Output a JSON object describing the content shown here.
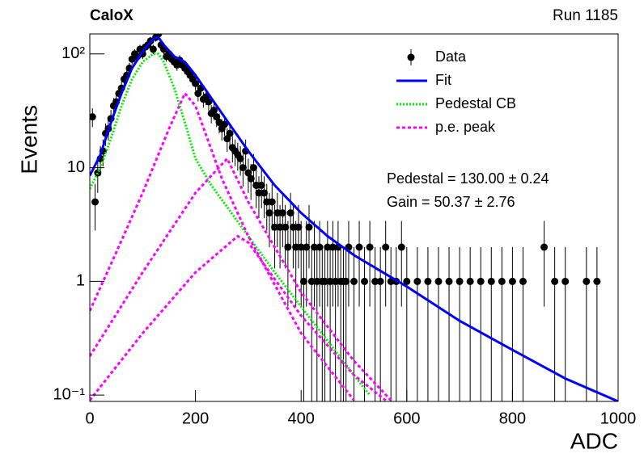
{
  "chart_data": {
    "type": "log-line",
    "title": "CaloX",
    "subtitle": "Run 1185",
    "x_label": "ADC",
    "y_label": "Events",
    "annotations": [
      "Pedestal = 130.00 ± 0.24",
      "Gain = 50.37 ± 2.76"
    ],
    "log_y": true,
    "legend": "upper-right",
    "xlim": [
      0,
      1000
    ],
    "ylim": [
      0.088,
      150
    ],
    "xticks": [
      0,
      200,
      400,
      600,
      800,
      1000
    ],
    "yticks": [
      {
        "value": 0.1,
        "label": "10⁻¹"
      },
      1,
      10,
      {
        "value": 100,
        "label": "10²"
      }
    ],
    "series": [
      {
        "name": "Data",
        "color": "#000000",
        "style": "points",
        "x": [
          5,
          10,
          15,
          20,
          25,
          30,
          35,
          40,
          45,
          50,
          55,
          60,
          65,
          70,
          75,
          80,
          85,
          90,
          95,
          100,
          105,
          110,
          115,
          120,
          125,
          130,
          135,
          140,
          145,
          150,
          155,
          160,
          165,
          170,
          175,
          180,
          185,
          190,
          195,
          200,
          205,
          210,
          215,
          220,
          225,
          230,
          235,
          240,
          245,
          250,
          255,
          260,
          265,
          270,
          275,
          280,
          285,
          290,
          295,
          300,
          305,
          310,
          315,
          320,
          325,
          330,
          335,
          340,
          345,
          350,
          355,
          360,
          365,
          370,
          375,
          380,
          385,
          390,
          395,
          400,
          405,
          410,
          415,
          420,
          425,
          430,
          435,
          440,
          445,
          450,
          455,
          460,
          465,
          470,
          475,
          480,
          485,
          490,
          500,
          510,
          520,
          530,
          540,
          550,
          560,
          570,
          580,
          590,
          600,
          620,
          640,
          660,
          680,
          700,
          720,
          740,
          760,
          780,
          800,
          820,
          860,
          880,
          900,
          940,
          960
        ],
        "values": [
          28,
          5,
          9,
          12,
          14,
          20,
          22,
          27,
          35,
          38,
          45,
          50,
          60,
          65,
          75,
          90,
          100,
          95,
          110,
          100,
          115,
          120,
          130,
          110,
          140,
          150,
          120,
          110,
          95,
          100,
          90,
          85,
          80,
          88,
          80,
          75,
          70,
          65,
          60,
          55,
          45,
          50,
          40,
          42,
          38,
          30,
          32,
          28,
          25,
          22,
          24,
          18,
          20,
          15,
          14,
          13,
          12,
          10,
          14,
          9,
          8,
          10,
          7,
          6,
          7,
          6,
          5,
          4,
          5,
          3,
          4,
          3,
          4,
          3,
          2,
          4,
          3,
          2,
          3,
          2,
          1,
          2,
          3,
          1,
          2,
          1,
          2,
          1,
          1,
          2,
          1,
          2,
          1,
          2,
          1,
          1,
          1,
          2,
          1,
          2,
          1,
          2,
          1,
          1,
          2,
          1,
          1,
          2,
          1,
          1,
          1,
          1,
          1,
          1,
          1,
          1,
          1,
          1,
          1,
          1,
          2,
          1,
          1,
          1,
          1
        ],
        "yerr": [
          5.3,
          2.2,
          3,
          3.5,
          3.7,
          4.5,
          4.7,
          5.2,
          5.9,
          6.2,
          6.7,
          7.1,
          7.7,
          8.1,
          8.7,
          9.5,
          10,
          9.7,
          10.5,
          10,
          10.7,
          11,
          11.4,
          10.5,
          11.8,
          12.2,
          11,
          10.5,
          9.7,
          10,
          9.5,
          9.2,
          8.9,
          9.4,
          8.9,
          8.7,
          8.4,
          8.1,
          7.7,
          7.4,
          6.7,
          7.1,
          6.3,
          6.5,
          6.2,
          5.5,
          5.7,
          5.3,
          5,
          4.7,
          4.9,
          4.2,
          4.5,
          3.9,
          3.7,
          3.6,
          3.5,
          3.2,
          3.7,
          3,
          2.8,
          3.2,
          2.6,
          2.4,
          2.6,
          2.4,
          2.2,
          2,
          2.2,
          1.7,
          2,
          1.7,
          2,
          1.7,
          1.4,
          2,
          1.7,
          1.4,
          1.7,
          1.4,
          1,
          1.4,
          1.7,
          1,
          1.4,
          1,
          1.4,
          1,
          1,
          1.4,
          1,
          1.4,
          1,
          1.4,
          1,
          1,
          1,
          1.4,
          1,
          1.4,
          1,
          1.4,
          1,
          1,
          1.4,
          1,
          1,
          1.4,
          1,
          1,
          1,
          1,
          1,
          1,
          1,
          1,
          1,
          1,
          1,
          1,
          1.4,
          1,
          1,
          1,
          1
        ]
      },
      {
        "name": "Fit",
        "color": "#0000ff",
        "style": "solid",
        "x": [
          0,
          20,
          40,
          60,
          80,
          100,
          120,
          130,
          140,
          160,
          180,
          200,
          250,
          300,
          350,
          400,
          450,
          500,
          600,
          700,
          800,
          900,
          1000
        ],
        "values": [
          8.5,
          13,
          25,
          45,
          75,
          105,
          135,
          140,
          120,
          95,
          85,
          65,
          30,
          14,
          7,
          4,
          2.5,
          1.7,
          0.9,
          0.45,
          0.25,
          0.14,
          0.088
        ]
      },
      {
        "name": "Pedestal CB",
        "color": "#00ee00",
        "style": "dotted",
        "x": [
          0,
          20,
          40,
          60,
          80,
          100,
          120,
          130,
          140,
          160,
          180,
          200,
          230,
          260,
          300,
          350,
          400,
          450,
          500,
          530
        ],
        "values": [
          6.5,
          10,
          18,
          35,
          60,
          85,
          100,
          100,
          85,
          50,
          25,
          12,
          7,
          4.5,
          2.5,
          1.2,
          0.6,
          0.3,
          0.15,
          0.1
        ]
      },
      {
        "name": "p.e. peak",
        "color": "#ff00ff",
        "style": "dashed",
        "x": [
          0,
          50,
          100,
          150,
          180,
          200,
          250,
          300,
          400,
          500
        ],
        "values": [
          0.55,
          1.8,
          6,
          22,
          45,
          35,
          8,
          2.5,
          0.35,
          0.09
        ]
      },
      {
        "color": "#ff00ff",
        "style": "dashed",
        "x": [
          0,
          100,
          200,
          260,
          300,
          400,
          500,
          570
        ],
        "values": [
          0.22,
          1.2,
          6,
          12,
          5,
          0.8,
          0.2,
          0.09
        ]
      },
      {
        "color": "#ff00ff",
        "style": "dashed",
        "x": [
          0,
          100,
          200,
          280,
          300,
          400,
          500,
          560
        ],
        "values": [
          0.09,
          0.35,
          1.2,
          2.5,
          2.2,
          0.5,
          0.15,
          0.09
        ]
      }
    ]
  }
}
